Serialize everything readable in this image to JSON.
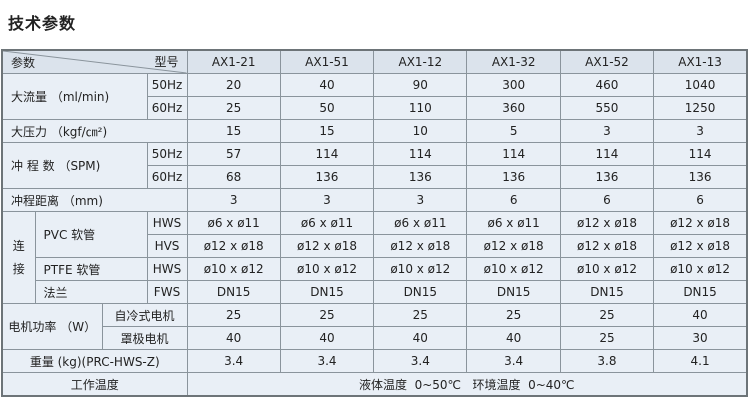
{
  "title": "技术参数",
  "header": {
    "param_label": "参数",
    "model_label": "型号",
    "models": [
      "AX1-21",
      "AX1-51",
      "AX1-12",
      "AX1-32",
      "AX1-52",
      "AX1-13"
    ]
  },
  "rows": {
    "flow": {
      "label": "大流量 （ml/min)",
      "sub": [
        "50Hz",
        "60Hz"
      ],
      "values": [
        [
          "20",
          "40",
          "90",
          "300",
          "460",
          "1040"
        ],
        [
          "25",
          "50",
          "110",
          "360",
          "550",
          "1250"
        ]
      ]
    },
    "pressure": {
      "label": "大压力 （kgf/㎝²)",
      "values": [
        "15",
        "15",
        "10",
        "5",
        "3",
        "3"
      ]
    },
    "spm": {
      "label": "冲 程 数 （SPM)",
      "sub": [
        "50Hz",
        "60Hz"
      ],
      "values": [
        [
          "57",
          "114",
          "114",
          "114",
          "114",
          "114"
        ],
        [
          "68",
          "136",
          "136",
          "136",
          "136",
          "136"
        ]
      ]
    },
    "stroke": {
      "label": "冲程距离 （mm)",
      "values": [
        "3",
        "3",
        "3",
        "6",
        "6",
        "6"
      ]
    },
    "connection": {
      "label": "连 接",
      "pvc": {
        "label": "PVC 软管",
        "sub": [
          "HWS",
          "HVS"
        ],
        "values": [
          [
            "ø6 x ø11",
            "ø6 x ø11",
            "ø6 x ø11",
            "ø6 x ø11",
            "ø12 x ø18",
            "ø12 x ø18"
          ],
          [
            "ø12 x ø18",
            "ø12 x ø18",
            "ø12 x ø18",
            "ø12 x ø18",
            "ø12 x ø18",
            "ø12 x ø18"
          ]
        ]
      },
      "ptfe": {
        "label": "PTFE 软管",
        "sub": "HWS",
        "values": [
          "ø10 x ø12",
          "ø10 x ø12",
          "ø10 x ø12",
          "ø10 x ø12",
          "ø10 x ø12",
          "ø10 x ø12"
        ]
      },
      "flange": {
        "label": "法兰",
        "sub": "FWS",
        "values": [
          "DN15",
          "DN15",
          "DN15",
          "DN15",
          "DN15",
          "DN15"
        ]
      }
    },
    "motor": {
      "label": "电机功率 （W）",
      "sub": [
        "自冷式电机",
        "罩极电机"
      ],
      "values": [
        [
          "25",
          "25",
          "25",
          "25",
          "25",
          "40"
        ],
        [
          "40",
          "40",
          "40",
          "40",
          "25",
          "30"
        ]
      ]
    },
    "weight": {
      "label": "重量 (kg)(PRC-HWS-Z)",
      "values": [
        "3.4",
        "3.4",
        "3.4",
        "3.4",
        "3.8",
        "4.1"
      ]
    },
    "temperature": {
      "label": "工作温度",
      "value": "液体温度  0~50℃   环境温度  0~40℃"
    }
  }
}
